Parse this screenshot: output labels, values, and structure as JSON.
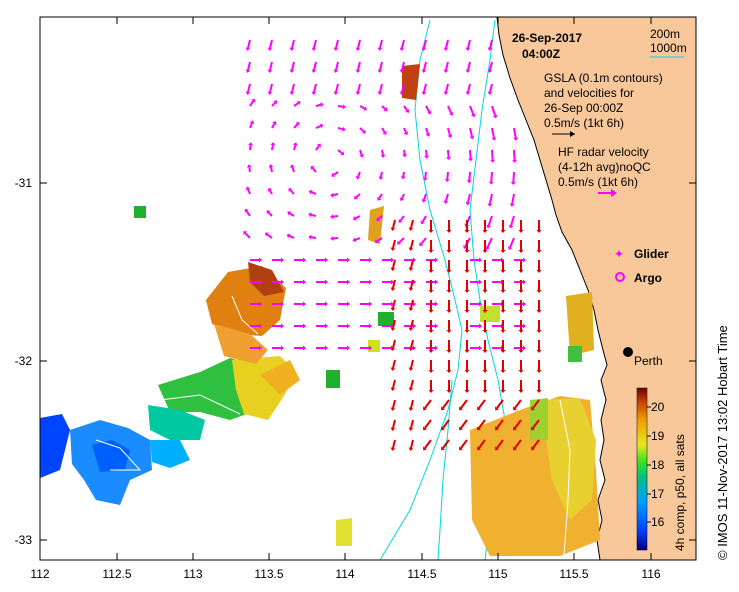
{
  "date_title": "26-Sep-2017",
  "time_title": "04:00Z",
  "bathy_legend": {
    "shallow": "200m",
    "deep": "1000m"
  },
  "gsla_text": [
    "GSLA (0.1m contours)",
    "and velocities for",
    "26-Sep 00:00Z",
    "0.5m/s (1kt 6h)"
  ],
  "hf_text": [
    "HF radar velocity",
    "(4-12h avg)noQC",
    "0.5m/s (1kt 6h)"
  ],
  "glider_label": "Glider",
  "argo_label": "Argo",
  "city_label": "Perth",
  "colorbar": {
    "ticks": [
      "20",
      "19",
      "18",
      "17",
      "16"
    ],
    "label": "4h comp, p50, all sats"
  },
  "side_credit": "© IMOS 11-Nov-2017 13:02 Hobart Time",
  "axes": {
    "x_ticks": [
      "112",
      "112.5",
      "113",
      "113.5",
      "114",
      "114.5",
      "115",
      "115.5",
      "116"
    ],
    "y_ticks": [
      "-31",
      "-32",
      "-33"
    ]
  },
  "colors": {
    "land": "#f8c89a",
    "hf_arrow": "#ff00ff",
    "gsla_arrow": "#e00000",
    "bathy": "#00e0e0"
  }
}
